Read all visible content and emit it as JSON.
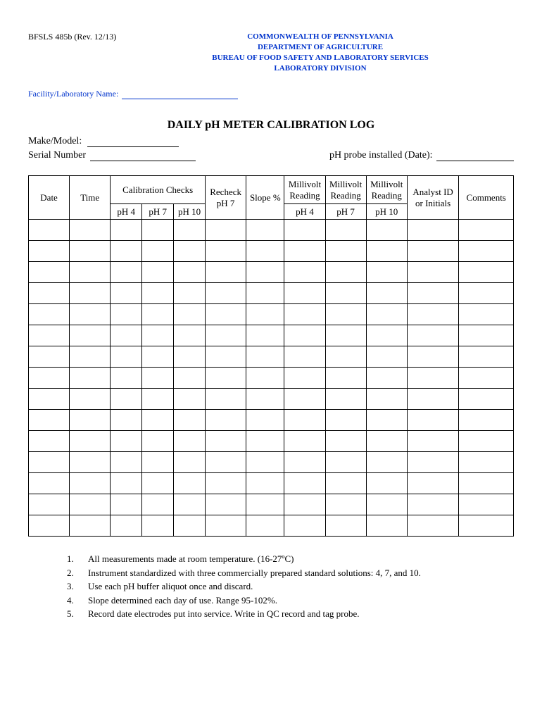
{
  "form_id": "BFSLS 485b (Rev. 12/13)",
  "header": {
    "line1": "COMMONWEALTH OF PENNSYLVANIA",
    "line2": "DEPARTMENT OF AGRICULTURE",
    "line3": "BUREAU OF FOOD SAFETY AND LABORATORY SERVICES",
    "line4": "LABORATORY DIVISION"
  },
  "facility_label": "Facility/Laboratory Name:",
  "title": "DAILY pH METER CALIBRATION LOG",
  "make_model_label": "Make/Model:",
  "serial_label": "Serial Number",
  "probe_label": "pH probe installed (Date):",
  "columns": {
    "date": "Date",
    "time": "Time",
    "cal_checks": "Calibration  Checks",
    "recheck": "Recheck pH 7",
    "slope": "Slope %",
    "mv_reading": "Millivolt Reading",
    "analyst": "Analyst ID or Initials",
    "comments": "Comments",
    "ph4": "pH 4",
    "ph7": "pH 7",
    "ph10": "pH 10"
  },
  "col_widths": {
    "date": "7.5%",
    "time": "7.5%",
    "ph_sub": "5.8%",
    "recheck": "7.5%",
    "slope": "7.0%",
    "mv_sub": "7.5%",
    "analyst": "9.5%",
    "comments": "10.0%"
  },
  "data_row_count": 15,
  "notes": [
    "All measurements made at room temperature.  (16-27ºC)",
    "Instrument standardized with three commercially prepared standard solutions: 4, 7, and 10.",
    "Use each pH buffer aliquot once and discard.",
    "Slope determined each day of use. Range 95-102%.",
    "Record date electrodes put into service.  Write in QC record and tag probe."
  ]
}
